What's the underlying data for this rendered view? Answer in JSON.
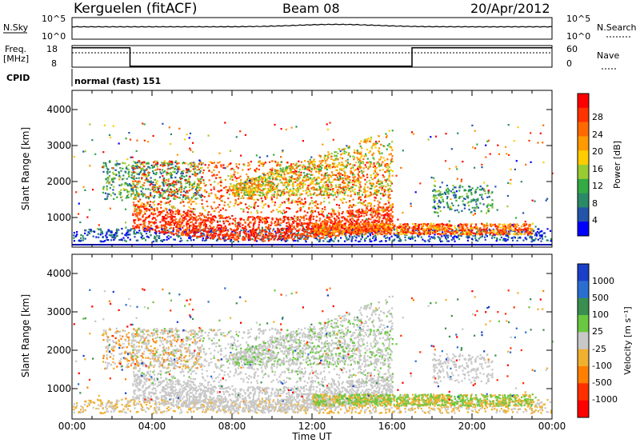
{
  "header": {
    "station": "Kerguelen (fitACF)",
    "beam": "Beam 08",
    "date": "20/Apr/2012"
  },
  "sky_panel": {
    "left_label": "N.Sky",
    "left_ticks": [
      "10^5",
      "10^0"
    ],
    "right_ticks": [
      "10^5",
      "10^0"
    ],
    "right_label": "N.Search"
  },
  "freq_panel": {
    "left_label_1": "Freq.",
    "left_label_2": "[MHz]",
    "left_ticks": [
      "18",
      "8"
    ],
    "right_ticks": [
      "60",
      "0"
    ],
    "right_label": "Nave"
  },
  "cpid_panel": {
    "label": "CPID",
    "mode": "normal (fast) 151"
  },
  "time_axis": {
    "labels": [
      "00:00",
      "04:00",
      "08:00",
      "12:00",
      "16:00",
      "20:00",
      "00:00"
    ],
    "title": "Time UT"
  },
  "range_axis": {
    "title": "Slant Range [km]",
    "ticks": [
      "4000",
      "3000",
      "2000",
      "1000"
    ]
  },
  "power_colorbar": {
    "title": "Power [dB]",
    "ticks": [
      "28",
      "24",
      "20",
      "16",
      "12",
      "8",
      "4"
    ],
    "colors": [
      "#ff0000",
      "#ff3300",
      "#ff6a00",
      "#ff9a00",
      "#ffcc00",
      "#99cc33",
      "#33aa44",
      "#2a8a66",
      "#2255aa",
      "#0000ff"
    ]
  },
  "velocity_colorbar": {
    "title": "Velocity [m s⁻¹]",
    "ticks": [
      "1000",
      "500",
      "100",
      "25",
      "-25",
      "-100",
      "-500",
      "-1000"
    ],
    "colors": [
      "#1a3fc8",
      "#2a6fd0",
      "#3a8f50",
      "#6ac840",
      "#c8c8c8",
      "#f0b030",
      "#ff8000",
      "#ff3000",
      "#ff0000"
    ]
  },
  "chart_data": [
    {
      "type": "line",
      "title": "N.Sky",
      "x_range_hours": [
        0,
        24
      ],
      "y_scale": "log",
      "ylim": [
        "10^0",
        "10^5"
      ]
    },
    {
      "type": "line",
      "title": "Freq. [MHz]",
      "x_range_hours": [
        0,
        24
      ],
      "series": [
        {
          "name": "Freq.",
          "points": [
            [
              0,
              17
            ],
            [
              2.9,
              17
            ],
            [
              2.9,
              8.5
            ],
            [
              17.0,
              8.5
            ],
            [
              17.0,
              17
            ],
            [
              24,
              17
            ]
          ]
        }
      ],
      "ylim": [
        8,
        18
      ]
    },
    {
      "type": "heatmap",
      "title": "Power [dB]",
      "x_range_hours": [
        0,
        24
      ],
      "ylim_km": [
        180,
        4500
      ],
      "colorbar_range_db": [
        0,
        30
      ],
      "features": [
        {
          "t0": 0,
          "t1": 24,
          "r0": 180,
          "r1": 600,
          "level": "low"
        },
        {
          "t0": 1.5,
          "t1": 6.5,
          "r0": 1400,
          "r1": 2600,
          "level": "mixed"
        },
        {
          "t0": 3,
          "t1": 16,
          "r0": 400,
          "r1": 1400,
          "level": "high"
        },
        {
          "t0": 8,
          "t1": 16,
          "r0": 1400,
          "r1": 3500,
          "level": "mixed"
        },
        {
          "t0": 12,
          "t1": 23,
          "r0": 200,
          "r1": 800,
          "level": "high"
        }
      ]
    },
    {
      "type": "heatmap",
      "title": "Velocity [m s⁻¹]",
      "x_range_hours": [
        0,
        24
      ],
      "ylim_km": [
        180,
        4500
      ],
      "colorbar_range": [
        -1000,
        1000
      ],
      "features": [
        {
          "t0": 0,
          "t1": 24,
          "r0": 180,
          "r1": 600,
          "level": "mixed"
        },
        {
          "t0": 3,
          "t1": 16,
          "r0": 400,
          "r1": 2500,
          "level": "near-zero"
        },
        {
          "t0": 8,
          "t1": 16,
          "r0": 1400,
          "r1": 3500,
          "level": "near-zero"
        },
        {
          "t0": 12,
          "t1": 23,
          "r0": 200,
          "r1": 800,
          "level": "positive"
        }
      ]
    }
  ]
}
